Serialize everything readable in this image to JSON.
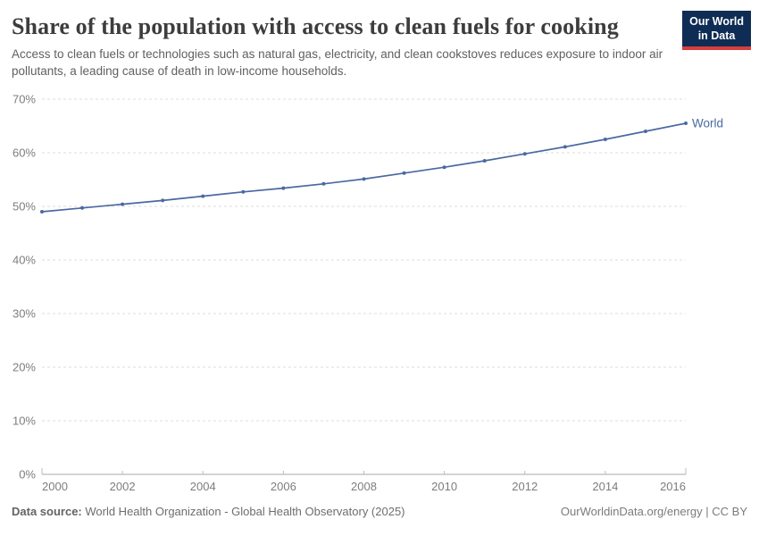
{
  "header": {
    "title": "Share of the population with access to clean fuels for cooking",
    "subtitle": "Access to clean fuels or technologies such as natural gas, electricity, and clean cookstoves reduces exposure to indoor air pollutants, a leading cause of death in low-income households.",
    "logo": {
      "line1": "Our World",
      "line2": "in Data"
    }
  },
  "footer": {
    "source_label": "Data source:",
    "source_text": " World Health Organization - Global Health Observatory (2025)",
    "link_text": "OurWorldinData.org/energy",
    "separator": " | ",
    "license_text": "CC BY"
  },
  "colors": {
    "series_blue": "#4A69A2",
    "logo_background": "#0F2C54",
    "logo_stripe_red": "#D73E3E",
    "gridline": "#DCDCDC",
    "axis_line": "#A9A9A9",
    "tick_label": "#7D7D7D",
    "title_text": "#3D3D3D",
    "subtitle_text": "#606060"
  },
  "chart_data": {
    "type": "line",
    "title": "Share of the population with access to clean fuels for cooking",
    "xlabel": "",
    "ylabel": "",
    "x": [
      2000,
      2001,
      2002,
      2003,
      2004,
      2005,
      2006,
      2007,
      2008,
      2009,
      2010,
      2011,
      2012,
      2013,
      2014,
      2015,
      2016
    ],
    "series": [
      {
        "name": "World",
        "color": "#4A69A2",
        "values": [
          49.0,
          49.7,
          50.4,
          51.1,
          51.9,
          52.7,
          53.4,
          54.2,
          55.1,
          56.2,
          57.3,
          58.5,
          59.8,
          61.1,
          62.5,
          64.0,
          65.5
        ]
      }
    ],
    "ylim": [
      0,
      70
    ],
    "yticks": [
      0,
      10,
      20,
      30,
      40,
      50,
      60,
      70
    ],
    "ytick_suffix": "%",
    "xticks": [
      2000,
      2002,
      2004,
      2006,
      2008,
      2010,
      2012,
      2014,
      2016
    ],
    "grid": "horizontal-dashed",
    "legend_position": "end-of-line-label"
  }
}
